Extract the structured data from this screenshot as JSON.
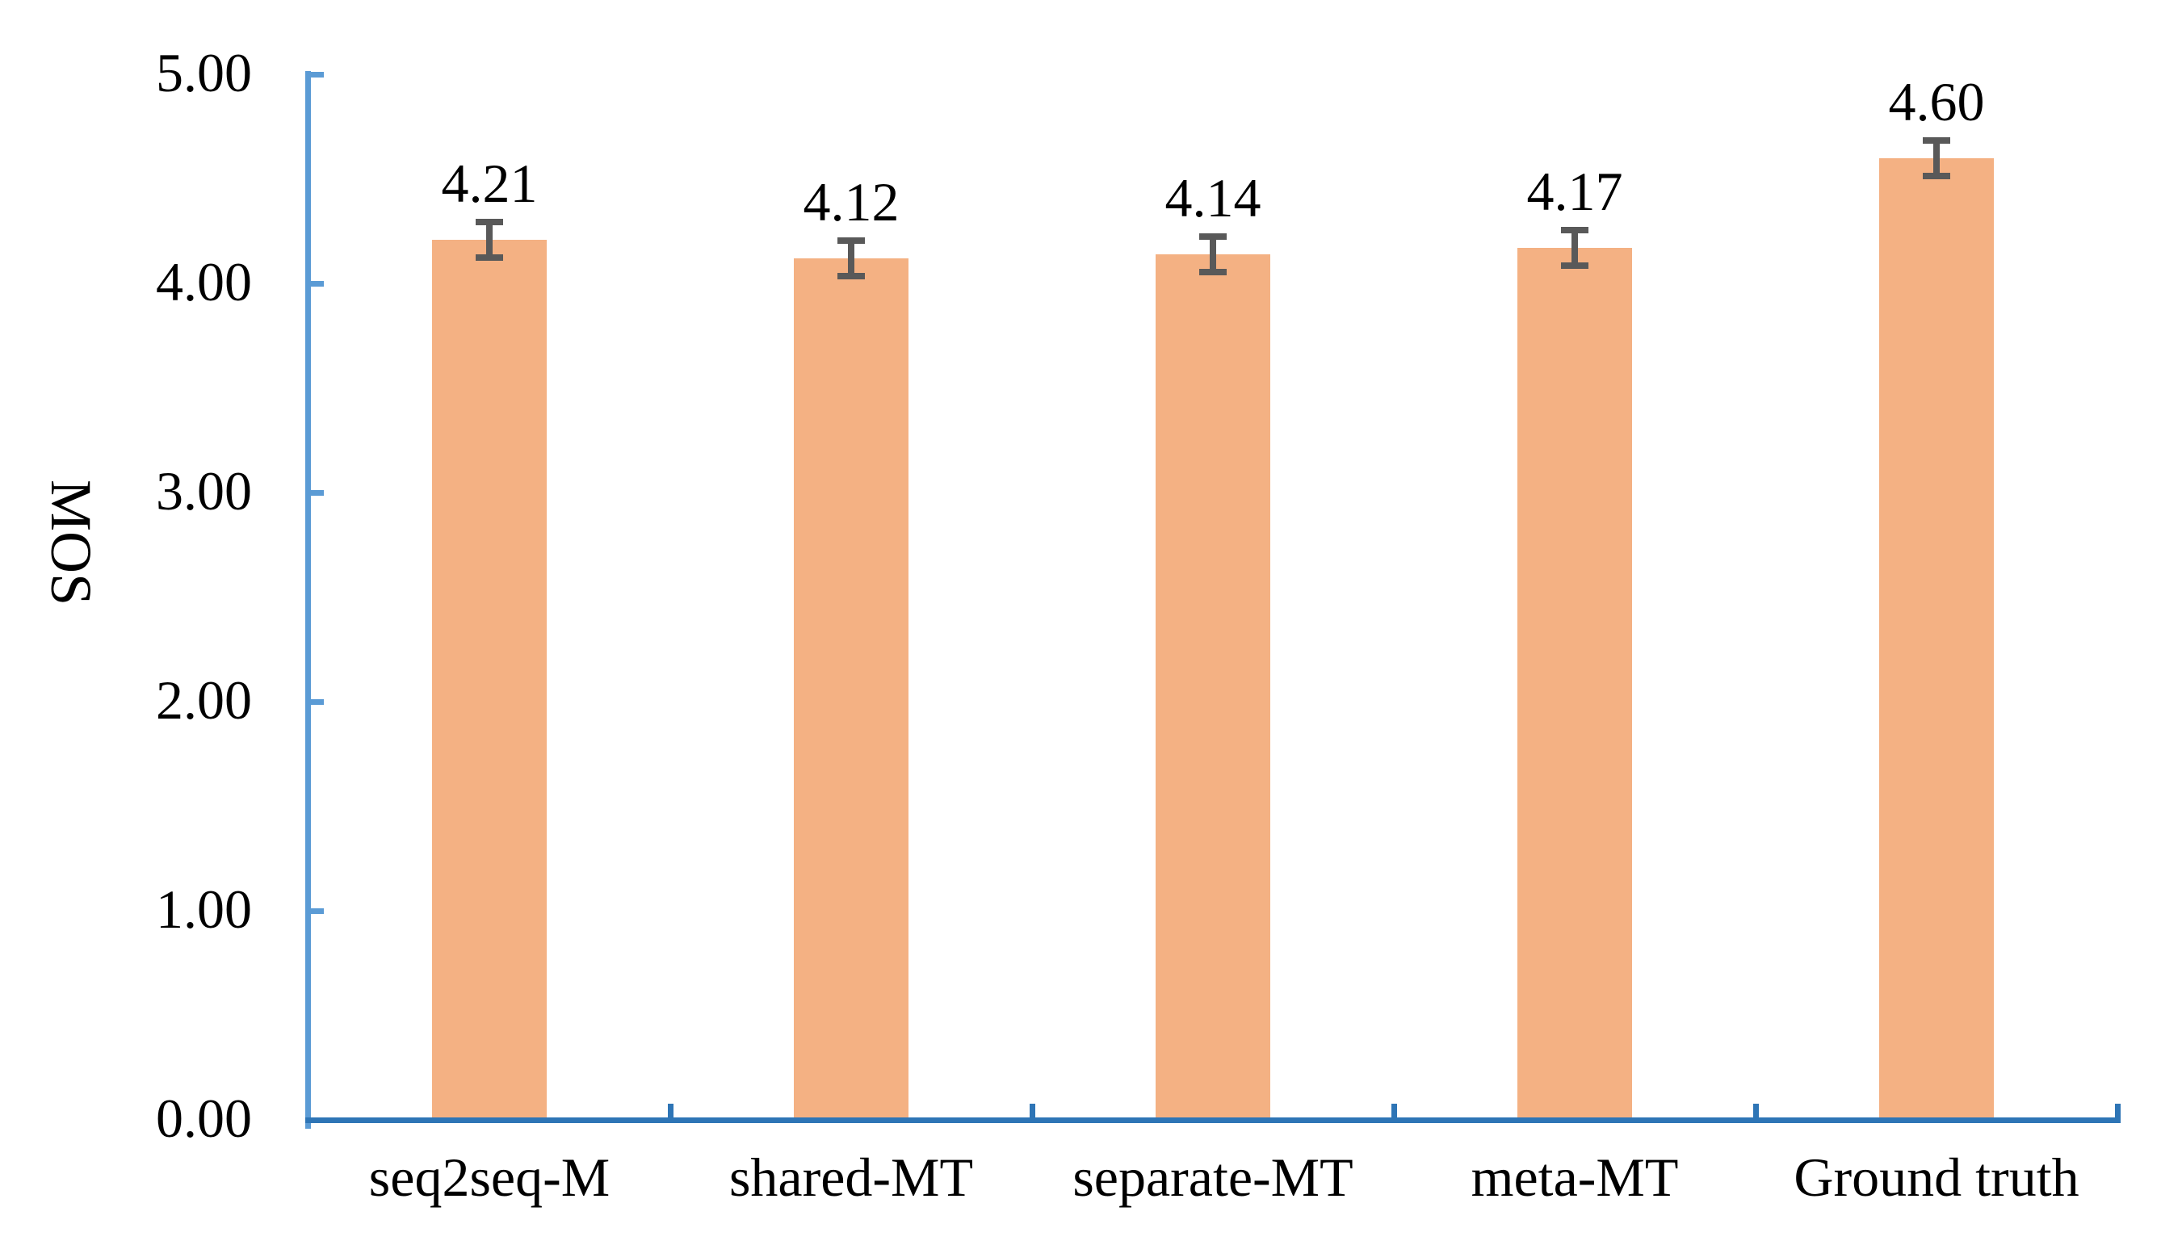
{
  "chart_data": {
    "type": "bar",
    "title": "",
    "xlabel": "",
    "ylabel": "MOS",
    "categories": [
      "seq2seq-M",
      "shared-MT",
      "separate-MT",
      "meta-MT",
      "Ground truth"
    ],
    "values": [
      4.21,
      4.12,
      4.14,
      4.17,
      4.6
    ],
    "errors": [
      0.1,
      0.1,
      0.1,
      0.1,
      0.1
    ],
    "data_labels": [
      "4.21",
      "4.12",
      "4.14",
      "4.17",
      "4.60"
    ],
    "ylim": [
      0,
      5
    ],
    "yticks": [
      0,
      1,
      2,
      3,
      4,
      5
    ],
    "ytick_labels": [
      "0.00",
      "1.00",
      "2.00",
      "3.00",
      "4.00",
      "5.00"
    ],
    "grid": false,
    "legend": "none",
    "colors": {
      "bar": "#F4B183",
      "error_bar": "#595959",
      "value_axis": "#5B9BD5",
      "category_axis": "#2E75B6",
      "text": "#000000",
      "background": "#FFFFFF"
    }
  }
}
